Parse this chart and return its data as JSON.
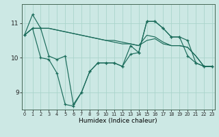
{
  "title": "",
  "xlabel": "Humidex (Indice chaleur)",
  "ylabel": "",
  "bg_color": "#cce8e4",
  "grid_color": "#aad4cc",
  "line_color": "#1a6b5a",
  "x_ticks": [
    0,
    1,
    2,
    3,
    4,
    5,
    6,
    7,
    8,
    9,
    10,
    11,
    12,
    13,
    14,
    15,
    16,
    17,
    18,
    19,
    20,
    21,
    22,
    23
  ],
  "y_ticks": [
    9,
    10,
    11
  ],
  "ylim": [
    8.5,
    11.55
  ],
  "xlim": [
    -0.3,
    23.3
  ],
  "series": [
    [
      10.65,
      11.25,
      10.85,
      10.05,
      9.95,
      10.05,
      8.65,
      9.0,
      9.6,
      9.85,
      9.85,
      9.85,
      9.75,
      10.35,
      10.15,
      11.05,
      11.05,
      10.85,
      10.6,
      10.6,
      10.5,
      9.85,
      9.75,
      9.75
    ],
    [
      10.65,
      10.85,
      10.85,
      10.85,
      10.8,
      10.75,
      10.7,
      10.65,
      10.6,
      10.55,
      10.5,
      10.5,
      10.45,
      10.4,
      10.35,
      10.5,
      10.55,
      10.4,
      10.35,
      10.35,
      10.3,
      10.05,
      9.75,
      9.75
    ],
    [
      10.65,
      10.85,
      10.85,
      10.85,
      10.8,
      10.75,
      10.7,
      10.65,
      10.6,
      10.55,
      10.5,
      10.45,
      10.4,
      10.4,
      10.35,
      10.65,
      10.6,
      10.45,
      10.35,
      10.35,
      10.3,
      10.05,
      9.75,
      9.75
    ],
    [
      10.65,
      10.85,
      10.0,
      9.95,
      9.55,
      8.65,
      8.6,
      9.0,
      9.6,
      9.85,
      9.85,
      9.85,
      9.75,
      10.1,
      10.15,
      11.05,
      11.05,
      10.85,
      10.6,
      10.6,
      10.05,
      9.85,
      9.75,
      9.75
    ]
  ],
  "marker_series": [
    0,
    3
  ],
  "xlabel_fontsize": 6.5,
  "xtick_fontsize": 4.8,
  "ytick_fontsize": 6.5,
  "linewidth": 0.85,
  "markersize": 3.5,
  "markeredgewidth": 0.9
}
